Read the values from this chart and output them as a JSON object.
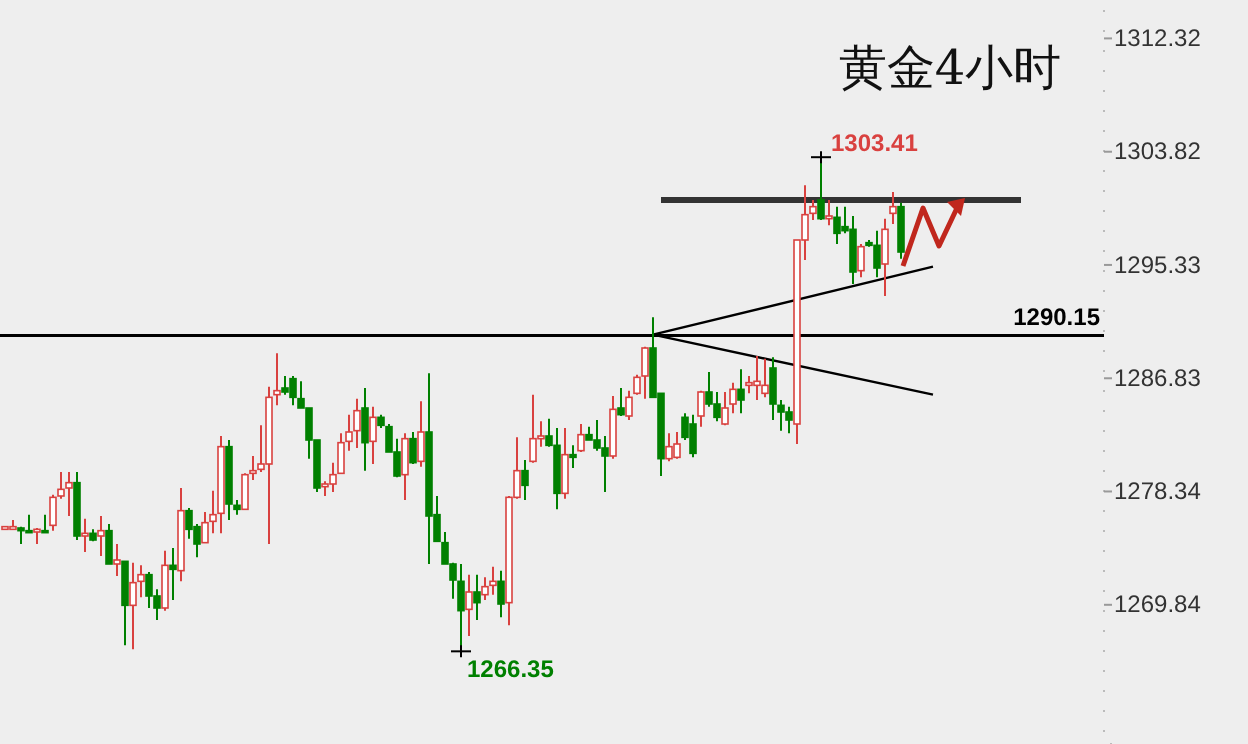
{
  "chart_data": {
    "type": "candlestick",
    "title": "黄金4小时",
    "categories": [
      null,
      null,
      null,
      null,
      null,
      null,
      null,
      null,
      null,
      null,
      null,
      null,
      null,
      null,
      null,
      null,
      null,
      null,
      null,
      null,
      null,
      null,
      null,
      null,
      null,
      null,
      null,
      null,
      null,
      null,
      null,
      null,
      null,
      null,
      null,
      null,
      null,
      null,
      null,
      null,
      null,
      null,
      null,
      null,
      null,
      null,
      null,
      null,
      null,
      null,
      null,
      null,
      null,
      null,
      null,
      null,
      null,
      null,
      null,
      null,
      null,
      null,
      null,
      null,
      null,
      null,
      null,
      null,
      null,
      null,
      null,
      null,
      null,
      null,
      null,
      null,
      null,
      null,
      null,
      null,
      null,
      null,
      null,
      null,
      null,
      null,
      null,
      null,
      null,
      null,
      null,
      null,
      null,
      null,
      null,
      null,
      null,
      null,
      null,
      null,
      null,
      null,
      null,
      null,
      null,
      null,
      null,
      null,
      null,
      null,
      null,
      null,
      null,
      null,
      null,
      null,
      null,
      null,
      null,
      null,
      null,
      null,
      null,
      null,
      null,
      null,
      null,
      null,
      null,
      null,
      null,
      null,
      null,
      null,
      null,
      null,
      null,
      null
    ],
    "ohlc": [
      [
        1275.5,
        1275.7,
        1275.5,
        1275.7
      ],
      [
        1275.5,
        1276.2,
        1275.5,
        1275.7
      ],
      [
        1275.6,
        1275.7,
        1274.4,
        1275.4
      ],
      [
        1275.4,
        1276.6,
        1275.3,
        1275.3
      ],
      [
        1275.3,
        1275.6,
        1274.4,
        1275.5
      ],
      [
        1275.4,
        1276.6,
        1275.3,
        1275.3
      ],
      [
        1275.8,
        1278.1,
        1275.4,
        1277.9
      ],
      [
        1278.0,
        1279.8,
        1277.8,
        1278.5
      ],
      [
        1278.6,
        1279.8,
        1276.5,
        1279.0
      ],
      [
        1279.0,
        1279.8,
        1274.7,
        1275.0
      ],
      [
        1275.0,
        1276.3,
        1273.8,
        1275.2
      ],
      [
        1275.2,
        1275.5,
        1274.6,
        1274.7
      ],
      [
        1275.0,
        1276.5,
        1273.5,
        1275.4
      ],
      [
        1275.4,
        1275.9,
        1272.9,
        1272.9
      ],
      [
        1272.9,
        1274.4,
        1272.0,
        1273.2
      ],
      [
        1273.1,
        1273.1,
        1266.8,
        1269.8
      ],
      [
        1269.8,
        1273.0,
        1266.5,
        1271.5
      ],
      [
        1271.6,
        1272.8,
        1270.4,
        1272.1
      ],
      [
        1272.1,
        1272.3,
        1269.6,
        1270.5
      ],
      [
        1270.5,
        1271.0,
        1268.7,
        1269.6
      ],
      [
        1269.6,
        1273.9,
        1269.4,
        1272.8
      ],
      [
        1272.8,
        1274.1,
        1270.2,
        1272.5
      ],
      [
        1272.4,
        1278.6,
        1271.6,
        1276.9
      ],
      [
        1276.9,
        1277.1,
        1274.8,
        1275.5
      ],
      [
        1275.7,
        1275.9,
        1273.4,
        1274.4
      ],
      [
        1274.5,
        1276.8,
        1274.5,
        1276.0
      ],
      [
        1276.1,
        1278.4,
        1275.2,
        1276.6
      ],
      [
        1276.7,
        1282.5,
        1275.2,
        1281.7
      ],
      [
        1281.7,
        1282.2,
        1276.2,
        1277.4
      ],
      [
        1277.3,
        1277.7,
        1276.6,
        1277.0
      ],
      [
        1277.0,
        1279.7,
        1277.0,
        1279.6
      ],
      [
        1279.7,
        1281.0,
        1279.2,
        1279.9
      ],
      [
        1280.0,
        1283.3,
        1279.8,
        1280.4
      ],
      [
        1280.4,
        1286.2,
        1274.4,
        1285.4
      ],
      [
        1285.6,
        1288.7,
        1284.8,
        1285.9
      ],
      [
        1286.1,
        1287.0,
        1285.6,
        1285.8
      ],
      [
        1286.8,
        1287.0,
        1284.8,
        1285.4
      ],
      [
        1285.3,
        1286.6,
        1284.6,
        1284.6
      ],
      [
        1284.6,
        1284.6,
        1280.8,
        1282.2
      ],
      [
        1282.2,
        1282.2,
        1278.3,
        1278.6
      ],
      [
        1278.7,
        1279.1,
        1278.0,
        1278.9
      ],
      [
        1278.9,
        1280.5,
        1278.3,
        1279.6
      ],
      [
        1279.7,
        1282.7,
        1279.7,
        1282.0
      ],
      [
        1282.1,
        1284.1,
        1281.4,
        1282.8
      ],
      [
        1282.9,
        1285.3,
        1281.6,
        1284.4
      ],
      [
        1284.6,
        1286.1,
        1279.9,
        1282.0
      ],
      [
        1282.1,
        1284.7,
        1280.4,
        1283.9
      ],
      [
        1283.9,
        1284.1,
        1283.1,
        1283.3
      ],
      [
        1283.2,
        1283.4,
        1281.3,
        1281.3
      ],
      [
        1281.3,
        1282.3,
        1279.4,
        1279.5
      ],
      [
        1279.6,
        1282.7,
        1277.7,
        1282.3
      ],
      [
        1282.3,
        1282.8,
        1280.4,
        1280.5
      ],
      [
        1280.6,
        1285.1,
        1280.2,
        1282.8
      ],
      [
        1282.8,
        1287.2,
        1272.9,
        1276.5
      ],
      [
        1276.6,
        1278.0,
        1274.6,
        1274.6
      ],
      [
        1274.5,
        1275.3,
        1272.9,
        1272.9
      ],
      [
        1272.9,
        1273.0,
        1270.3,
        1271.7
      ],
      [
        1271.6,
        1272.9,
        1266.35,
        1269.4
      ],
      [
        1269.5,
        1272.1,
        1267.5,
        1270.8
      ],
      [
        1270.8,
        1272.1,
        1268.7,
        1270.0
      ],
      [
        1270.6,
        1271.9,
        1270.2,
        1271.2
      ],
      [
        1271.3,
        1272.7,
        1270.6,
        1271.6
      ],
      [
        1271.6,
        1272.4,
        1268.9,
        1269.9
      ],
      [
        1270.0,
        1278.0,
        1268.3,
        1277.9
      ],
      [
        1277.9,
        1282.4,
        1277.8,
        1279.9
      ],
      [
        1279.9,
        1280.7,
        1277.7,
        1278.8
      ],
      [
        1280.6,
        1285.6,
        1280.5,
        1282.3
      ],
      [
        1282.3,
        1283.6,
        1281.7,
        1282.5
      ],
      [
        1282.5,
        1283.8,
        1281.7,
        1281.8
      ],
      [
        1281.8,
        1283.1,
        1277.0,
        1278.2
      ],
      [
        1278.2,
        1283.1,
        1277.8,
        1281.1
      ],
      [
        1281.1,
        1281.8,
        1280.1,
        1280.9
      ],
      [
        1281.4,
        1283.4,
        1281.3,
        1282.6
      ],
      [
        1282.6,
        1283.2,
        1282.2,
        1282.2
      ],
      [
        1282.2,
        1283.7,
        1281.4,
        1281.6
      ],
      [
        1281.6,
        1282.5,
        1278.3,
        1281.0
      ],
      [
        1281.0,
        1285.5,
        1280.8,
        1284.5
      ],
      [
        1284.6,
        1286.1,
        1284.0,
        1284.1
      ],
      [
        1284.0,
        1285.9,
        1283.7,
        1285.4
      ],
      [
        1285.7,
        1287.1,
        1285.6,
        1286.9
      ],
      [
        1287.0,
        1289.2,
        1285.3,
        1289.1
      ],
      [
        1289.1,
        1291.4,
        1285.4,
        1285.4
      ],
      [
        1285.7,
        1285.7,
        1279.5,
        1280.8
      ],
      [
        1280.8,
        1282.7,
        1280.6,
        1281.7
      ],
      [
        1280.9,
        1282.8,
        1280.8,
        1281.9
      ],
      [
        1283.9,
        1284.2,
        1282.2,
        1282.4
      ],
      [
        1283.4,
        1284.1,
        1280.9,
        1281.2
      ],
      [
        1284.0,
        1285.9,
        1283.2,
        1285.8
      ],
      [
        1285.8,
        1287.3,
        1284.7,
        1284.9
      ],
      [
        1284.9,
        1285.8,
        1283.6,
        1283.9
      ],
      [
        1283.4,
        1285.8,
        1283.3,
        1284.6
      ],
      [
        1284.9,
        1286.5,
        1284.2,
        1286.0
      ],
      [
        1286.0,
        1287.5,
        1284.2,
        1285.2
      ],
      [
        1286.3,
        1287.0,
        1285.7,
        1286.5
      ],
      [
        1286.3,
        1288.5,
        1285.2,
        1286.6
      ],
      [
        1285.7,
        1288.3,
        1285.4,
        1286.3
      ],
      [
        1287.6,
        1288.4,
        1283.7,
        1284.9
      ],
      [
        1284.8,
        1285.2,
        1282.9,
        1284.3
      ],
      [
        1284.3,
        1284.7,
        1282.7,
        1283.7
      ],
      [
        1283.4,
        1297.2,
        1281.9,
        1297.2
      ],
      [
        1297.2,
        1301.3,
        1295.7,
        1299.1
      ],
      [
        1299.2,
        1300.2,
        1298.7,
        1299.7
      ],
      [
        1300.2,
        1303.41,
        1298.7,
        1298.8
      ],
      [
        1298.8,
        1300.2,
        1298.3,
        1299.0
      ],
      [
        1298.9,
        1299.7,
        1296.9,
        1297.7
      ],
      [
        1298.2,
        1299.7,
        1297.7,
        1297.9
      ],
      [
        1298.0,
        1299.0,
        1293.9,
        1294.8
      ],
      [
        1294.9,
        1296.9,
        1294.4,
        1296.7
      ],
      [
        1297.0,
        1297.2,
        1296.7,
        1296.8
      ],
      [
        1296.8,
        1297.9,
        1294.4,
        1295.1
      ],
      [
        1295.4,
        1298.8,
        1293.0,
        1298.0
      ],
      [
        1299.2,
        1300.8,
        1298.4,
        1299.7
      ],
      [
        1299.7,
        1300.0,
        1295.8,
        1296.3
      ],
      null,
      null,
      null,
      null,
      null,
      null,
      null,
      null,
      null,
      null,
      null,
      null,
      null,
      null,
      null,
      null,
      null,
      null,
      null,
      null,
      null,
      null,
      null,
      null,
      null
    ],
    "colors": [
      "#d9413f",
      "#d9413f",
      "#008000",
      "#008000",
      "#d9413f",
      "#008000",
      "#d9413f",
      "#d9413f",
      "#d9413f",
      "#008000",
      "#d9413f",
      "#008000",
      "#d9413f",
      "#008000",
      "#d9413f",
      "#008000",
      "#d9413f",
      "#d9413f",
      "#008000",
      "#008000",
      "#d9413f",
      "#008000",
      "#d9413f",
      "#008000",
      "#008000",
      "#d9413f",
      "#d9413f",
      "#d9413f",
      "#008000",
      "#008000",
      "#d9413f",
      "#d9413f",
      "#d9413f",
      "#d9413f",
      "#d9413f",
      "#008000",
      "#008000",
      "#008000",
      "#008000",
      "#008000",
      "#d9413f",
      "#d9413f",
      "#d9413f",
      "#d9413f",
      "#d9413f",
      "#008000",
      "#d9413f",
      "#008000",
      "#008000",
      "#008000",
      "#d9413f",
      "#008000",
      "#d9413f",
      "#008000",
      "#008000",
      "#008000",
      "#008000",
      "#008000",
      "#d9413f",
      "#008000",
      "#d9413f",
      "#d9413f",
      "#008000",
      "#d9413f",
      "#d9413f",
      "#008000",
      "#d9413f",
      "#d9413f",
      "#008000",
      "#008000",
      "#d9413f",
      "#008000",
      "#d9413f",
      "#008000",
      "#008000",
      "#008000",
      "#d9413f",
      "#008000",
      "#d9413f",
      "#d9413f",
      "#d9413f",
      "#008000",
      "#008000",
      "#d9413f",
      "#d9413f",
      "#008000",
      "#008000",
      "#d9413f",
      "#008000",
      "#008000",
      "#d9413f",
      "#d9413f",
      "#008000",
      "#d9413f",
      "#d9413f",
      "#d9413f",
      "#008000",
      "#008000",
      "#008000",
      "#d9413f",
      "#d9413f",
      "#d9413f",
      "#008000",
      "#d9413f",
      "#008000",
      "#008000",
      "#008000",
      "#d9413f",
      "#008000",
      "#008000",
      "#d9413f",
      "#d9413f",
      "#008000",
      null,
      null,
      null,
      null,
      null,
      null,
      null,
      null,
      null,
      null,
      null,
      null,
      null,
      null,
      null,
      null,
      null,
      null,
      null,
      null,
      null,
      null,
      null,
      null,
      null
    ],
    "series": [
      {
        "type": "line",
        "color": "#333333",
        "values": [
          null,
          null,
          null,
          null,
          null,
          null,
          null,
          null,
          null,
          null,
          null,
          null,
          null,
          null,
          null,
          null,
          null,
          null,
          null,
          null,
          null,
          null,
          null,
          null,
          null,
          null,
          null,
          null,
          null,
          null,
          null,
          null,
          null,
          null,
          null,
          null,
          null,
          null,
          null,
          null,
          null,
          null,
          null,
          null,
          null,
          null,
          null,
          null,
          null,
          null,
          null,
          null,
          null,
          null,
          null,
          null,
          null,
          null,
          null,
          null,
          null,
          null,
          null,
          null,
          null,
          null,
          null,
          null,
          null,
          null,
          null,
          null,
          null,
          null,
          null,
          null,
          null,
          null,
          null,
          null,
          null,
          null,
          1300.2,
          null,
          null,
          null,
          null,
          null,
          null,
          null,
          null,
          null,
          null,
          null,
          null,
          null,
          null,
          null,
          null,
          null,
          null,
          null,
          null,
          null,
          null,
          null,
          null,
          null,
          null,
          null,
          null,
          null,
          null,
          null,
          null,
          null,
          null,
          null,
          null,
          null,
          null,
          null,
          null,
          null,
          null,
          null,
          null,
          1300.2,
          null,
          null,
          null,
          null,
          null,
          null,
          null,
          null,
          null,
          null
        ]
      },
      {
        "type": "line",
        "color": "#000000",
        "values": [
          null,
          null,
          null,
          null,
          null,
          null,
          null,
          null,
          null,
          null,
          null,
          null,
          null,
          null,
          null,
          null,
          null,
          null,
          null,
          null,
          null,
          null,
          null,
          null,
          null,
          null,
          null,
          null,
          null,
          null,
          null,
          null,
          null,
          null,
          null,
          null,
          null,
          null,
          null,
          null,
          null,
          null,
          null,
          null,
          null,
          null,
          null,
          null,
          null,
          null,
          null,
          null,
          null,
          null,
          null,
          null,
          null,
          null,
          null,
          null,
          null,
          null,
          null,
          null,
          null,
          null,
          null,
          null,
          null,
          null,
          null,
          null,
          null,
          null,
          null,
          null,
          null,
          null,
          null,
          null,
          null,
          1290.1,
          null,
          null,
          null,
          null,
          null,
          null,
          null,
          null,
          null,
          null,
          null,
          null,
          null,
          null,
          null,
          null,
          null,
          null,
          null,
          null,
          null,
          null,
          null,
          null,
          null,
          null,
          null,
          null,
          null,
          null,
          null,
          null,
          null,
          null,
          1295.2,
          null,
          null,
          null,
          null,
          null,
          null,
          null,
          null,
          null,
          null,
          null,
          null,
          null,
          null,
          null,
          null,
          null,
          null,
          null,
          null,
          null
        ]
      },
      {
        "type": "line",
        "color": "#000000",
        "values": [
          null,
          null,
          null,
          null,
          null,
          null,
          null,
          null,
          null,
          null,
          null,
          null,
          null,
          null,
          null,
          null,
          null,
          null,
          null,
          null,
          null,
          null,
          null,
          null,
          null,
          null,
          null,
          null,
          null,
          null,
          null,
          null,
          null,
          null,
          null,
          null,
          null,
          null,
          null,
          null,
          null,
          null,
          null,
          null,
          null,
          null,
          null,
          null,
          null,
          null,
          null,
          null,
          null,
          null,
          null,
          null,
          null,
          null,
          null,
          null,
          null,
          null,
          null,
          null,
          null,
          null,
          null,
          null,
          null,
          null,
          null,
          null,
          null,
          null,
          null,
          null,
          null,
          null,
          null,
          null,
          null,
          1290.1,
          null,
          null,
          null,
          null,
          null,
          null,
          null,
          null,
          null,
          null,
          null,
          null,
          null,
          null,
          null,
          null,
          null,
          null,
          null,
          null,
          null,
          null,
          null,
          null,
          null,
          null,
          null,
          null,
          null,
          null,
          null,
          null,
          null,
          null,
          1285.6,
          null,
          null,
          null,
          null,
          null,
          null,
          null,
          null,
          null,
          null,
          null,
          null,
          null,
          null,
          null,
          null,
          null,
          null,
          null,
          null,
          null
        ]
      }
    ],
    "ref_lines": [
      {
        "axis": "y",
        "value": 1290.15,
        "label": "1290.15",
        "color": "#000000"
      }
    ],
    "annotations": [
      "1303.41",
      "1266.35"
    ],
    "ylim": [
      1259.4,
      1315.2
    ],
    "yticks": [
      1269.84,
      1278.34,
      1286.83,
      1295.33,
      1303.82,
      1312.32
    ],
    "tick_labels": "y",
    "grid": false
  }
}
